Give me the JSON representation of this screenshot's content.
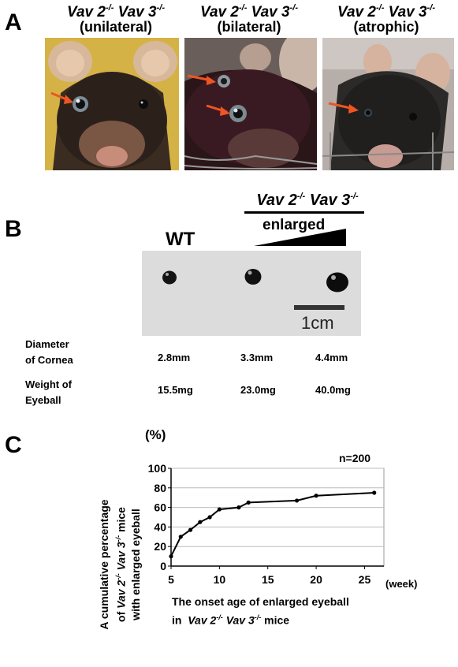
{
  "panel_a": {
    "letter": "A",
    "genotype": {
      "prefix": "Vav 2",
      "mid": " Vav 3",
      "sup": "-/-"
    },
    "conditions": [
      "(unilateral)",
      "(bilateral)",
      "(atrophic)"
    ]
  },
  "panel_b": {
    "letter": "B",
    "wt_label": "WT",
    "genotype": {
      "prefix": "Vav 2",
      "mid": " Vav 3",
      "sup": "-/-"
    },
    "enlarged_label": "enlarged",
    "scale_label": "1cm",
    "rows": [
      {
        "label_line1": "Diameter",
        "label_line2": "of Cornea",
        "values": [
          "2.8mm",
          "3.3mm",
          "4.4mm"
        ]
      },
      {
        "label_line1": "Weight of",
        "label_line2": "Eyeball",
        "values": [
          "15.5mg",
          "23.0mg",
          "40.0mg"
        ]
      }
    ]
  },
  "panel_c": {
    "letter": "C",
    "unit_label": "(%)",
    "n_label": "n=200",
    "x_unit_label": "(week)",
    "ylabel_line1": "A cumulative percentage",
    "ylabel_line2_pre": "of",
    "ylabel_line2_geno": "Vav 2",
    "ylabel_line2_geno2": " Vav 3",
    "ylabel_line2_post": " mice",
    "ylabel_line3": "with enlarged eyeball",
    "xlabel_line1": "The onset age of enlarged eyeball",
    "xlabel_line2_pre": "in",
    "xlabel_line2_geno": "Vav 2",
    "xlabel_line2_geno2": " Vav 3",
    "xlabel_line2_post": " mice",
    "sup": "-/-"
  },
  "chart_data": {
    "type": "line",
    "title": "",
    "xlabel": "The onset age of enlarged eyeball in Vav 2-/- Vav 3-/- mice",
    "ylabel": "A cumulative percentage of Vav 2-/- Vav 3-/- mice with enlarged eyeball",
    "xlim": [
      5,
      27
    ],
    "ylim": [
      0,
      100
    ],
    "x_ticks": [
      5,
      10,
      15,
      20,
      25
    ],
    "y_ticks": [
      0,
      20,
      40,
      60,
      80,
      100
    ],
    "grid": "horizontal",
    "series": [
      {
        "x": [
          5,
          6,
          7,
          8,
          9,
          10,
          12,
          13,
          18,
          20,
          26
        ],
        "y": [
          10,
          30,
          37,
          45,
          50,
          58,
          60,
          65,
          67,
          72,
          75
        ]
      }
    ]
  }
}
